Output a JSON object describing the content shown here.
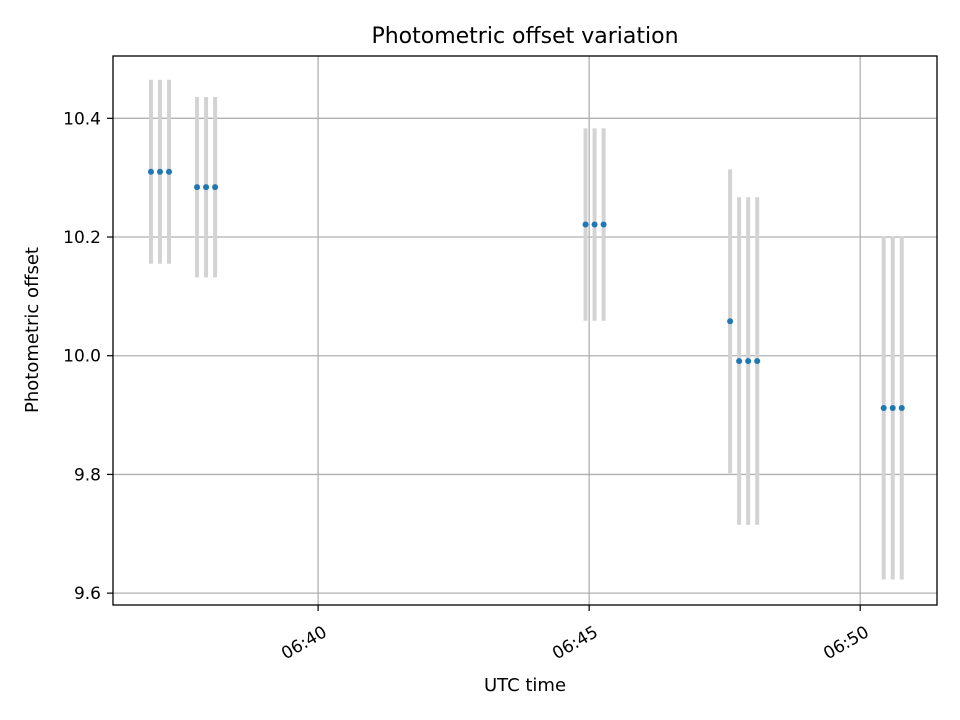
{
  "chart_data": {
    "type": "scatter",
    "title": "Photometric offset variation",
    "xlabel": "UTC time",
    "ylabel": "Photometric offset",
    "x_axis_type": "time",
    "xlim": [
      "06:36:13",
      "06:51:25"
    ],
    "ylim": [
      9.58,
      10.505
    ],
    "grid": true,
    "xticks": [
      "06:40",
      "06:45",
      "06:50"
    ],
    "yticks": [
      "9.6",
      "9.8",
      "10.0",
      "10.2",
      "10.4"
    ],
    "marker_color": "#1f77b4",
    "errorbar_color": "#d3d3d3",
    "series": [
      {
        "points": [
          {
            "x": "06:36:55",
            "y": 10.31,
            "err": 0.155
          },
          {
            "x": "06:37:05",
            "y": 10.31,
            "err": 0.155
          },
          {
            "x": "06:37:15",
            "y": 10.31,
            "err": 0.155
          },
          {
            "x": "06:37:46",
            "y": 10.284,
            "err": 0.152
          },
          {
            "x": "06:37:56",
            "y": 10.284,
            "err": 0.152
          },
          {
            "x": "06:38:06",
            "y": 10.284,
            "err": 0.152
          },
          {
            "x": "06:44:56",
            "y": 10.221,
            "err": 0.162
          },
          {
            "x": "06:45:06",
            "y": 10.221,
            "err": 0.162
          },
          {
            "x": "06:45:16",
            "y": 10.221,
            "err": 0.162
          },
          {
            "x": "06:47:36",
            "y": 10.058,
            "err": 0.256
          },
          {
            "x": "06:47:46",
            "y": 9.991,
            "err": 0.276
          },
          {
            "x": "06:47:56",
            "y": 9.991,
            "err": 0.276
          },
          {
            "x": "06:48:06",
            "y": 9.991,
            "err": 0.276
          },
          {
            "x": "06:50:26",
            "y": 9.912,
            "err": 0.289
          },
          {
            "x": "06:50:36",
            "y": 9.912,
            "err": 0.289
          },
          {
            "x": "06:50:46",
            "y": 9.912,
            "err": 0.289
          }
        ]
      }
    ]
  }
}
